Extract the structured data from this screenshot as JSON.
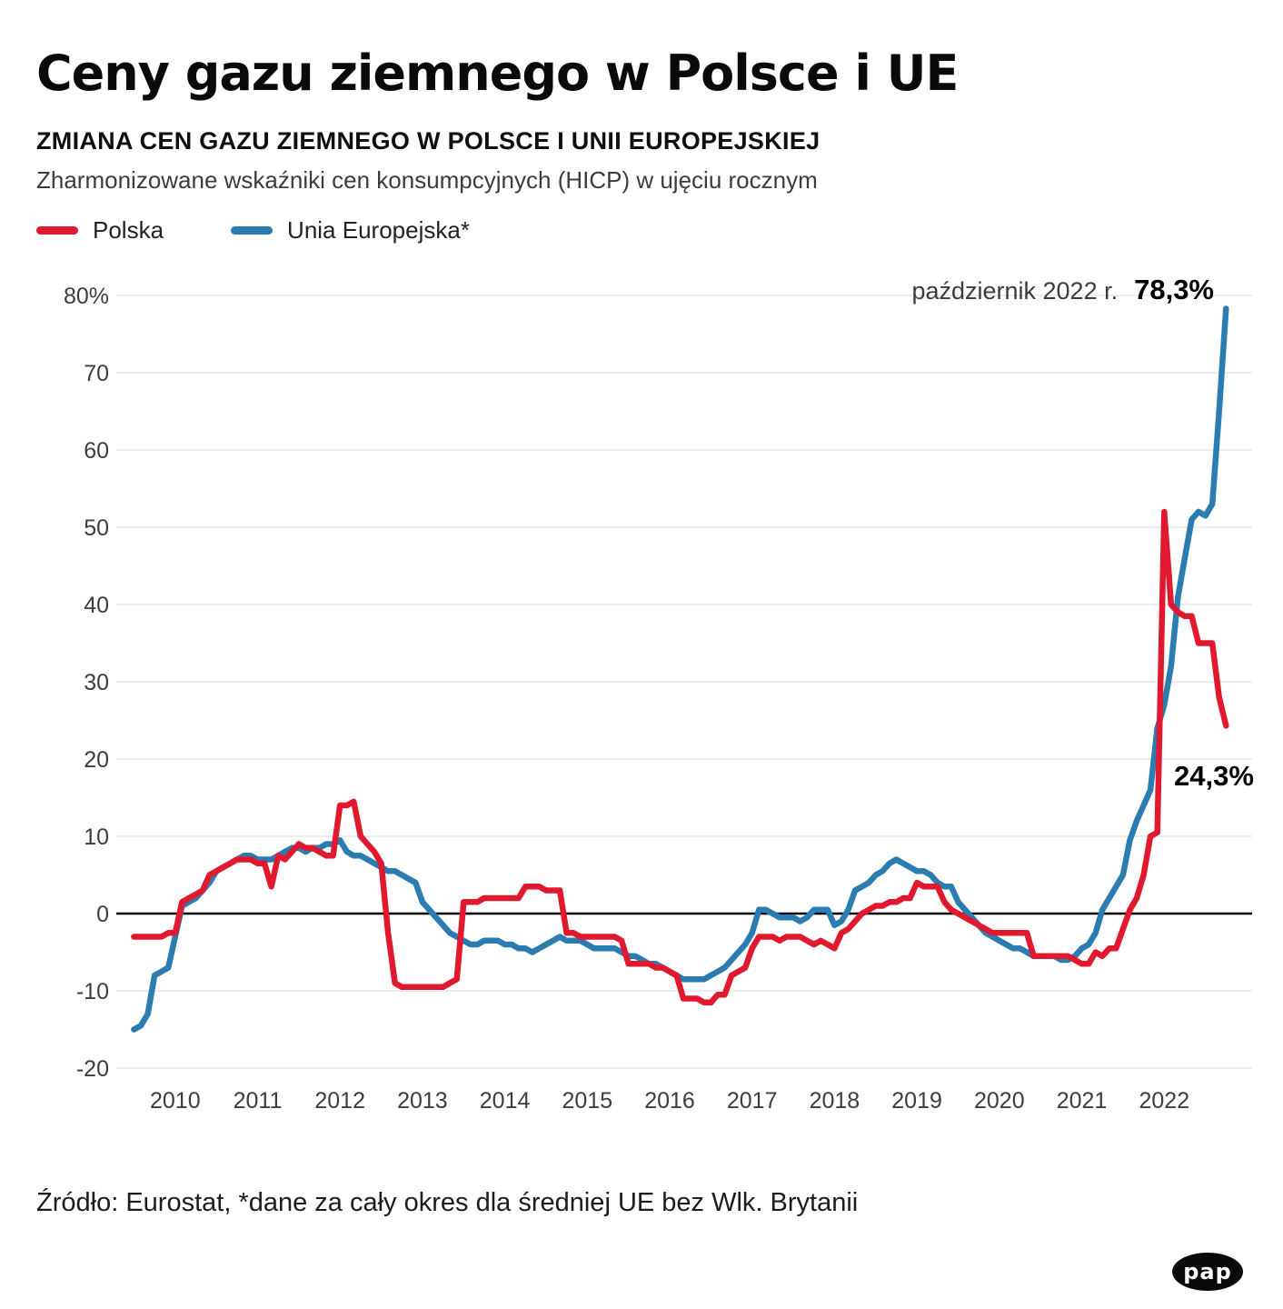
{
  "header": {
    "title": "Ceny gazu ziemnego w Polsce i UE",
    "subtitle": "ZMIANA CEN GAZU ZIEMNEGO W POLSCE I UNII EUROPEJSKIEJ",
    "description": "Zharmonizowane wskaźniki cen konsumpcyjnych (HICP) w ujęciu rocznym"
  },
  "legend": {
    "items": [
      {
        "label": "Polska",
        "color": "#e0192f"
      },
      {
        "label": "Unia Europejska*",
        "color": "#2b7cb0"
      }
    ]
  },
  "annotations": {
    "date_label": "październik 2022 r.",
    "eu_value": "78,3%",
    "poland_value": "24,3%"
  },
  "footer": {
    "source": "Źródło: Eurostat, *dane za cały okres dla średniej UE bez Wlk. Brytanii",
    "logo": "pap"
  },
  "chart_data": {
    "type": "line",
    "title": "Ceny gazu ziemnego w Polsce i UE",
    "subtitle": "Zmiana cen gazu ziemnego w Polsce i Unii Europejskiej (HICP, rok do roku)",
    "unit": "%",
    "x_start": {
      "year": 2009,
      "month": 7
    },
    "x_end": {
      "year": 2022,
      "month": 10
    },
    "x_frequency": "monthly",
    "xticks": [
      2010,
      2011,
      2012,
      2013,
      2014,
      2015,
      2016,
      2017,
      2018,
      2019,
      2020,
      2021,
      2022
    ],
    "ylim": [
      -20,
      80
    ],
    "yticks": [
      80,
      70,
      60,
      50,
      40,
      30,
      20,
      10,
      0,
      -10,
      -20
    ],
    "ytick_labels": [
      "80%",
      "70",
      "60",
      "50",
      "40",
      "30",
      "20",
      "10",
      "0",
      "-10",
      "-20"
    ],
    "grid": "horizontal",
    "legend_position": "top-left",
    "series": [
      {
        "name": "Polska",
        "color": "#e0192f",
        "values": [
          -3,
          -3,
          -3,
          -3,
          -3,
          -2.5,
          -2.5,
          1.5,
          2,
          2.5,
          3,
          5,
          5.5,
          6,
          6.5,
          7,
          7,
          7,
          6.5,
          6.5,
          3.5,
          7.5,
          7,
          8,
          9,
          8.5,
          8.5,
          8,
          7.5,
          7.5,
          14,
          14,
          14.5,
          10,
          9,
          8,
          6.5,
          -2.5,
          -9,
          -9.5,
          -9.5,
          -9.5,
          -9.5,
          -9.5,
          -9.5,
          -9.5,
          -9,
          -8.5,
          1.5,
          1.5,
          1.5,
          2,
          2,
          2,
          2,
          2,
          2,
          3.5,
          3.5,
          3.5,
          3,
          3,
          3,
          -2.5,
          -2.5,
          -3,
          -3,
          -3,
          -3,
          -3,
          -3,
          -3.5,
          -6.5,
          -6.5,
          -6.5,
          -6.5,
          -7,
          -7,
          -7.5,
          -8,
          -11,
          -11,
          -11,
          -11.5,
          -11.5,
          -10.5,
          -10.5,
          -8,
          -7.5,
          -7,
          -4.5,
          -3,
          -3,
          -3,
          -3.5,
          -3,
          -3,
          -3,
          -3.5,
          -4,
          -3.5,
          -4,
          -4.5,
          -2.5,
          -2,
          -1,
          0,
          0.5,
          1,
          1,
          1.5,
          1.5,
          2,
          2,
          4,
          3.5,
          3.5,
          3.5,
          1.5,
          0.5,
          0,
          -0.5,
          -1,
          -1.5,
          -2,
          -2.5,
          -2.5,
          -2.5,
          -2.5,
          -2.5,
          -2.5,
          -5.5,
          -5.5,
          -5.5,
          -5.5,
          -5.5,
          -5.5,
          -6,
          -6.5,
          -6.5,
          -5,
          -5.5,
          -4.5,
          -4.5,
          -2,
          0.5,
          2,
          5,
          10,
          10.5,
          52,
          40,
          39,
          38.5,
          38.5,
          35,
          35,
          35,
          28,
          24.3
        ]
      },
      {
        "name": "Unia Europejska*",
        "color": "#2b7cb0",
        "values": [
          -15,
          -14.5,
          -13,
          -8,
          -7.5,
          -7,
          -3,
          1,
          1.5,
          2,
          3,
          4,
          5.5,
          6,
          6.5,
          7,
          7.5,
          7.5,
          7,
          7,
          7,
          7.5,
          8,
          8.5,
          8.5,
          8,
          8.5,
          8.5,
          9,
          9,
          9.5,
          8,
          7.5,
          7.5,
          7,
          6.5,
          6,
          5.5,
          5.5,
          5,
          4.5,
          4,
          1.5,
          0.5,
          -0.5,
          -1.5,
          -2.5,
          -3,
          -3.5,
          -4,
          -4,
          -3.5,
          -3.5,
          -3.5,
          -4,
          -4,
          -4.5,
          -4.5,
          -5,
          -4.5,
          -4,
          -3.5,
          -3,
          -3.5,
          -3.5,
          -3.5,
          -4,
          -4.5,
          -4.5,
          -4.5,
          -4.5,
          -5,
          -5.5,
          -5.5,
          -6,
          -6.5,
          -6.5,
          -7,
          -7.5,
          -8,
          -8.5,
          -8.5,
          -8.5,
          -8.5,
          -8,
          -7.5,
          -7,
          -6,
          -5,
          -4,
          -2.5,
          0.5,
          0.5,
          0,
          -0.5,
          -0.5,
          -0.5,
          -1,
          -0.5,
          0.5,
          0.5,
          0.5,
          -1.5,
          -1,
          0.5,
          3,
          3.5,
          4,
          5,
          5.5,
          6.5,
          7,
          6.5,
          6,
          5.5,
          5.5,
          5,
          4,
          3.5,
          3.5,
          1.5,
          0.5,
          -0.5,
          -1.5,
          -2.5,
          -3,
          -3.5,
          -4,
          -4.5,
          -4.5,
          -5,
          -5.5,
          -5.5,
          -5.5,
          -5.5,
          -6,
          -6,
          -5.5,
          -4.5,
          -4,
          -2.5,
          0.5,
          2,
          3.5,
          5,
          9.5,
          12,
          14,
          16,
          24,
          27,
          32,
          41,
          46,
          51,
          52,
          51.5,
          53,
          65,
          78.3
        ]
      }
    ],
    "annotations": [
      {
        "text": "październik 2022 r.",
        "value": "78,3%",
        "series": "Unia Europejska*",
        "x": "2022-10"
      },
      {
        "value": "24,3%",
        "series": "Polska",
        "x": "2022-10"
      }
    ]
  }
}
